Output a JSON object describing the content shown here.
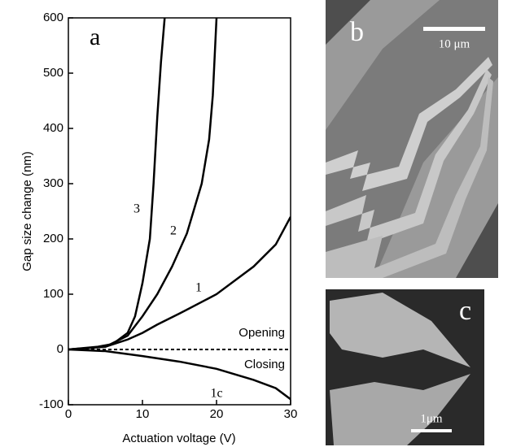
{
  "chart_data": {
    "type": "line",
    "ylabel": "Gap size change (nm)",
    "xlabel": "Actuation voltage (V)",
    "xlim": [
      0,
      30
    ],
    "xticks": [
      0,
      10,
      20,
      30
    ],
    "ylim": [
      -100,
      600
    ],
    "yticks": [
      -100,
      0,
      100,
      200,
      300,
      400,
      500,
      600
    ],
    "series": [
      {
        "name": "3",
        "color": "#000000",
        "x": [
          0,
          4,
          6,
          8,
          9,
          10,
          11,
          11.5,
          12,
          12.5,
          13
        ],
        "values": [
          0,
          5,
          10,
          30,
          60,
          120,
          200,
          300,
          420,
          520,
          600
        ]
      },
      {
        "name": "2",
        "color": "#000000",
        "x": [
          0,
          5,
          8,
          10,
          12,
          14,
          16,
          18,
          19,
          19.5,
          20
        ],
        "values": [
          0,
          5,
          25,
          60,
          100,
          150,
          210,
          300,
          380,
          460,
          600
        ]
      },
      {
        "name": "1",
        "color": "#000000",
        "x": [
          0,
          5,
          8,
          10,
          12,
          15,
          20,
          25,
          28,
          30
        ],
        "values": [
          0,
          5,
          18,
          30,
          45,
          65,
          100,
          150,
          190,
          240
        ]
      },
      {
        "name": "1c",
        "color": "#000000",
        "x": [
          0,
          5,
          10,
          15,
          20,
          25,
          28,
          30
        ],
        "values": [
          0,
          -3,
          -12,
          -22,
          -35,
          -55,
          -70,
          -90
        ]
      }
    ],
    "annotations": [
      "Opening",
      "Closing"
    ],
    "panels": [
      {
        "label": "a"
      },
      {
        "label": "b",
        "scale_bar": "10 μm"
      },
      {
        "label": "c",
        "scale_bar": "1μm"
      }
    ]
  }
}
